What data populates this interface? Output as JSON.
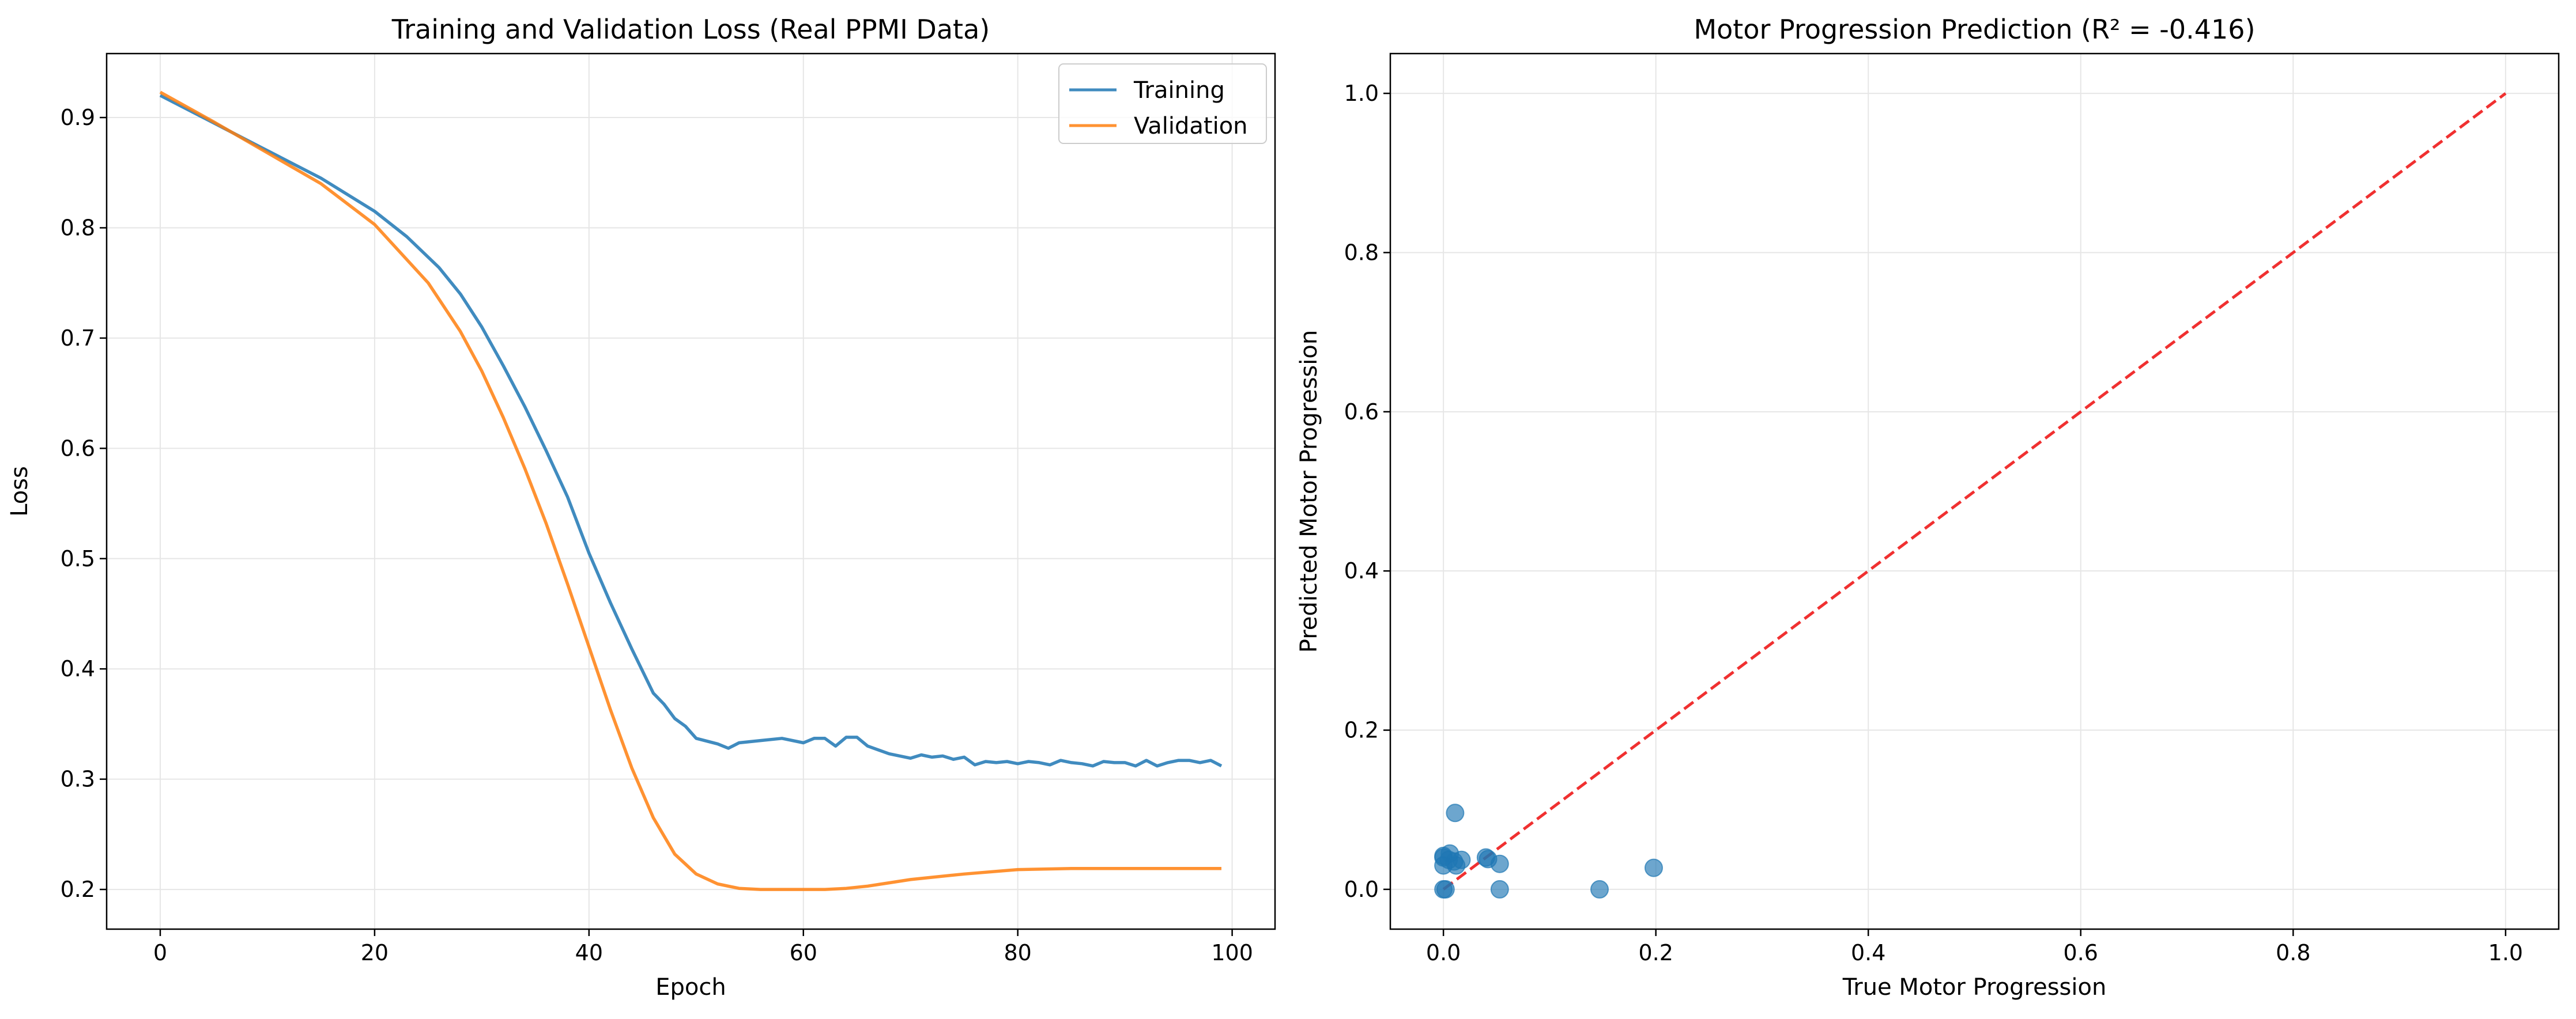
{
  "chart_data": [
    {
      "type": "line",
      "title": "Training and Validation Loss (Real PPMI Data)",
      "xlabel": "Epoch",
      "ylabel": "Loss",
      "xlim": [
        -5,
        104
      ],
      "ylim": [
        0.164,
        0.958
      ],
      "xticks": [
        0,
        20,
        40,
        60,
        80,
        100
      ],
      "yticks": [
        0.2,
        0.3,
        0.4,
        0.5,
        0.6,
        0.7,
        0.8,
        0.9
      ],
      "xtick_labels": [
        "0",
        "20",
        "40",
        "60",
        "80",
        "100"
      ],
      "ytick_labels": [
        "0.2",
        "0.3",
        "0.4",
        "0.5",
        "0.6",
        "0.7",
        "0.8",
        "0.9"
      ],
      "grid": true,
      "legend": "top-right",
      "series": [
        {
          "name": "Training",
          "color": "#1f77b4",
          "x": [
            0,
            5,
            10,
            15,
            20,
            23,
            26,
            28,
            30,
            32,
            34,
            36,
            38,
            40,
            42,
            44,
            46,
            47,
            48,
            49,
            50,
            52,
            53,
            54,
            56,
            58,
            60,
            61,
            62,
            63,
            64,
            65,
            66,
            68,
            70,
            71,
            72,
            73,
            74,
            75,
            76,
            77,
            78,
            79,
            80,
            81,
            82,
            83,
            84,
            85,
            86,
            87,
            88,
            89,
            90,
            91,
            92,
            93,
            94,
            95,
            96,
            97,
            98,
            99
          ],
          "y": [
            0.92,
            0.895,
            0.87,
            0.845,
            0.815,
            0.792,
            0.764,
            0.74,
            0.71,
            0.675,
            0.638,
            0.598,
            0.556,
            0.505,
            0.46,
            0.418,
            0.378,
            0.368,
            0.355,
            0.348,
            0.337,
            0.332,
            0.328,
            0.333,
            0.335,
            0.337,
            0.333,
            0.337,
            0.337,
            0.33,
            0.338,
            0.338,
            0.33,
            0.323,
            0.319,
            0.322,
            0.32,
            0.321,
            0.318,
            0.32,
            0.313,
            0.316,
            0.315,
            0.316,
            0.314,
            0.316,
            0.315,
            0.313,
            0.317,
            0.315,
            0.314,
            0.312,
            0.316,
            0.315,
            0.315,
            0.312,
            0.317,
            0.312,
            0.315,
            0.317,
            0.317,
            0.315,
            0.317,
            0.312
          ]
        },
        {
          "name": "Validation",
          "color": "#ff7f0e",
          "x": [
            0,
            5,
            10,
            15,
            20,
            25,
            28,
            30,
            32,
            34,
            36,
            38,
            40,
            42,
            44,
            46,
            48,
            50,
            52,
            54,
            56,
            58,
            60,
            62,
            64,
            66,
            68,
            70,
            72,
            75,
            80,
            85,
            90,
            95,
            99
          ],
          "y": [
            0.923,
            0.896,
            0.868,
            0.84,
            0.803,
            0.75,
            0.706,
            0.67,
            0.628,
            0.582,
            0.532,
            0.477,
            0.42,
            0.363,
            0.31,
            0.265,
            0.232,
            0.214,
            0.205,
            0.201,
            0.2,
            0.2,
            0.2,
            0.2,
            0.201,
            0.203,
            0.206,
            0.209,
            0.211,
            0.214,
            0.218,
            0.219,
            0.219,
            0.219,
            0.219
          ]
        }
      ]
    },
    {
      "type": "scatter",
      "title": "Motor Progression Prediction (R² = -0.416)",
      "xlabel": "True Motor Progression",
      "ylabel": "Predicted Motor Progression",
      "xlim": [
        -0.05,
        1.05
      ],
      "ylim": [
        -0.05,
        1.05
      ],
      "xticks": [
        0.0,
        0.2,
        0.4,
        0.6,
        0.8,
        1.0
      ],
      "yticks": [
        0.0,
        0.2,
        0.4,
        0.6,
        0.8,
        1.0
      ],
      "xtick_labels": [
        "0.0",
        "0.2",
        "0.4",
        "0.6",
        "0.8",
        "1.0"
      ],
      "ytick_labels": [
        "0.0",
        "0.2",
        "0.4",
        "0.6",
        "0.8",
        "1.0"
      ],
      "grid": true,
      "point_color": "#1f77b4",
      "reference_line_color": "#ee1a1a",
      "reference_line": {
        "x": [
          0,
          1
        ],
        "y": [
          0,
          1
        ]
      },
      "points": [
        {
          "x": 0.0,
          "y": 0.0
        },
        {
          "x": 0.002,
          "y": 0.0
        },
        {
          "x": 0.0,
          "y": 0.03
        },
        {
          "x": 0.0,
          "y": 0.04
        },
        {
          "x": 0.0,
          "y": 0.042
        },
        {
          "x": 0.005,
          "y": 0.037
        },
        {
          "x": 0.006,
          "y": 0.045
        },
        {
          "x": 0.01,
          "y": 0.035
        },
        {
          "x": 0.012,
          "y": 0.03
        },
        {
          "x": 0.011,
          "y": 0.096
        },
        {
          "x": 0.017,
          "y": 0.037
        },
        {
          "x": 0.04,
          "y": 0.04
        },
        {
          "x": 0.042,
          "y": 0.038
        },
        {
          "x": 0.053,
          "y": 0.032
        },
        {
          "x": 0.053,
          "y": 0.0
        },
        {
          "x": 0.147,
          "y": 0.0
        },
        {
          "x": 0.198,
          "y": 0.027
        }
      ]
    }
  ]
}
